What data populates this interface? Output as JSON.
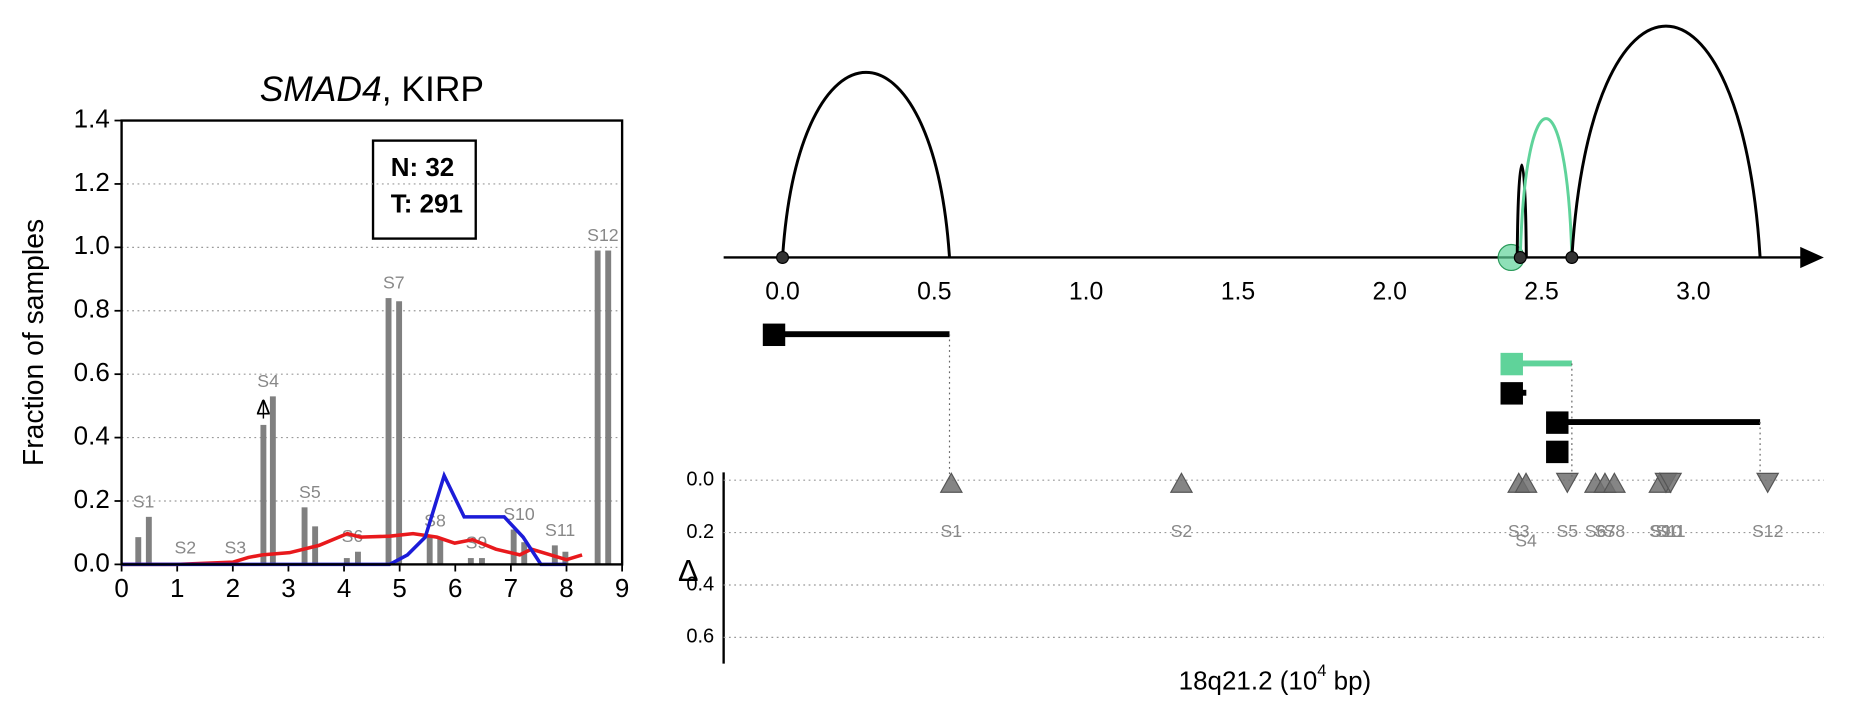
{
  "chart_data": [
    {
      "type": "bar",
      "title_italic": "SMAD4",
      "title": ", KIRP",
      "ylabel": "Fraction of samples",
      "xlim": [
        0,
        9
      ],
      "xticks": [
        0,
        1,
        2,
        3,
        4,
        5,
        6,
        7,
        8,
        9
      ],
      "ylim": [
        0,
        1.4
      ],
      "yticks": [
        {
          "value": 0,
          "label": "0.0"
        },
        0.2,
        0.4,
        0.6,
        0.8,
        {
          "value": 1,
          "label": "1.0"
        },
        1.2,
        1.4
      ],
      "grid": true,
      "annotation": [
        "N: 32",
        "T: 291"
      ],
      "segments": [
        "S1",
        "S2",
        "S3",
        "S4",
        "S5",
        "S6",
        "S7",
        "S8",
        "S9",
        "S10",
        "S11",
        "S12"
      ],
      "bar_color": "#808080",
      "bars": [
        {
          "x": [
            0.3,
            1.05,
            1.95,
            2.55,
            3.29,
            4.05,
            4.8,
            5.54,
            6.28,
            7.05,
            7.79,
            8.56
          ],
          "values": [
            0.086,
            0.005,
            0.005,
            0.44,
            0.18,
            0.02,
            0.84,
            0.09,
            0.02,
            0.11,
            0.06,
            0.99
          ]
        },
        {
          "x": [
            0.49,
            1.24,
            2.14,
            2.72,
            3.48,
            4.25,
            4.99,
            5.73,
            6.48,
            7.24,
            7.98,
            8.75
          ],
          "values": [
            0.15,
            0.005,
            0.005,
            0.53,
            0.12,
            0.04,
            0.83,
            0.08,
            0.02,
            0.07,
            0.04,
            0.99
          ]
        }
      ],
      "lines": [
        {
          "color": "#e8191c",
          "x": [
            0,
            1.0,
            2.0,
            2.28,
            2.53,
            3.02,
            3.55,
            4.06,
            4.29,
            4.82,
            5.24,
            5.67,
            5.99,
            6.31,
            6.73,
            7.16,
            7.37,
            7.79,
            8.0,
            8.28
          ],
          "values": [
            0,
            0,
            0.007,
            0.022,
            0.03,
            0.037,
            0.06,
            0.097,
            0.086,
            0.089,
            0.097,
            0.086,
            0.067,
            0.078,
            0.048,
            0.03,
            0.048,
            0.026,
            0.015,
            0.03
          ]
        },
        {
          "color": "#1c1cd8",
          "x": [
            0,
            4.82,
            5.14,
            5.46,
            5.8,
            6.16,
            6.88,
            7.22,
            7.54,
            8.0
          ],
          "values": [
            0,
            0,
            0.03,
            0.086,
            0.28,
            0.15,
            0.15,
            0.086,
            0,
            0
          ]
        }
      ],
      "delta_marker": {
        "label": "Δ",
        "x": 2.55,
        "y": 0.49,
        "err": 0.03
      }
    },
    {
      "type": "arc",
      "xlim": [
        -0.194,
        3.43
      ],
      "xticks": [
        {
          "value": 0,
          "label": "0.0"
        },
        0.5,
        {
          "value": 1,
          "label": "1.0"
        },
        1.5,
        {
          "value": 2,
          "label": "2.0"
        },
        2.5,
        {
          "value": 3,
          "label": "3.0"
        }
      ],
      "arcs": [
        {
          "start": 0,
          "end": 0.55,
          "height": 0.8,
          "color": "#000000"
        },
        {
          "start": 2.42,
          "end": 2.45,
          "height": 0.4,
          "color": "#000000"
        },
        {
          "start": 2.43,
          "end": 2.6,
          "height": 0.6,
          "color": "#5fd39a"
        },
        {
          "start": 2.6,
          "end": 3.22,
          "height": 1.0,
          "color": "#000000"
        }
      ],
      "junctions": [
        0,
        2.43,
        2.6
      ],
      "highlight": {
        "x": 2.4,
        "color": "#5fd39a"
      },
      "isoforms": [
        {
          "start": -0.03,
          "end": 0.55,
          "color": "#000000"
        },
        {
          "start": 2.4,
          "end": 2.6,
          "color": "#5fd39a"
        },
        {
          "start": 2.4,
          "end": 2.45,
          "color": "#000000"
        },
        {
          "start": 2.55,
          "end": 3.22,
          "color": "#000000"
        },
        {
          "start": 2.55,
          "end": 2.55,
          "color": "#000000"
        }
      ]
    },
    {
      "type": "scatter",
      "xlabel": "18q21.2 (10",
      "xlabel_sup": "4",
      "xlabel_end": " bp)",
      "ylabel": "Δ",
      "xlim": [
        -0.194,
        3.43
      ],
      "ylim": [
        -0.03,
        0.7
      ],
      "inverted": true,
      "yticks": [
        {
          "value": 0,
          "label": "0.0"
        },
        0.2,
        0.4,
        0.6
      ],
      "grid": true,
      "color": "#707070",
      "labels": [
        "S1",
        "S2",
        "S3",
        "S4",
        "S5",
        "S6",
        "S7",
        "S8",
        "S9",
        "S10",
        "S11",
        "S12"
      ],
      "x": [
        0.556,
        1.314,
        2.425,
        2.449,
        2.585,
        2.678,
        2.709,
        2.74,
        2.89,
        2.91,
        2.925,
        3.245
      ],
      "values": [
        0.01,
        0.01,
        0.01,
        0.01,
        0.01,
        0.01,
        0.01,
        0.01,
        0.01,
        0.01,
        0.01,
        0.01
      ],
      "direction": [
        "up",
        "up",
        "up",
        "up",
        "down",
        "up",
        "up",
        "up",
        "up",
        "down",
        "down",
        "down"
      ]
    }
  ]
}
